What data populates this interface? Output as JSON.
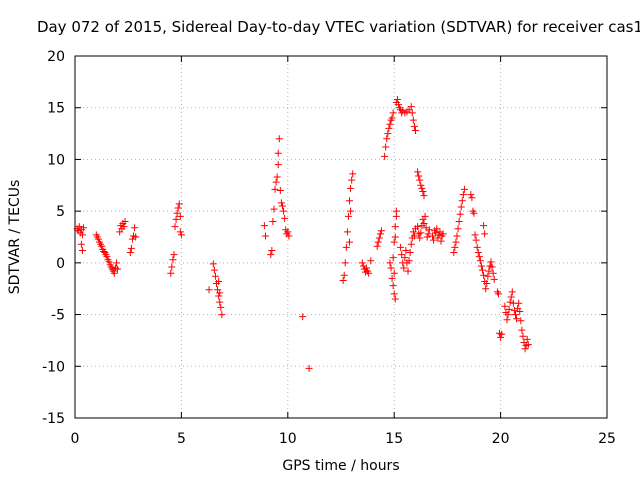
{
  "chart_data": {
    "type": "scatter",
    "title": "Day 072 of 2015, Sidereal Day-to-day VTEC variation (SDTVAR) for receiver cas1",
    "xlabel": "GPS time / hours",
    "ylabel": "SDTVAR / TECUs",
    "xlim": [
      0,
      25
    ],
    "ylim": [
      -15,
      20
    ],
    "xticks": [
      0,
      5,
      10,
      15,
      20,
      25
    ],
    "yticks": [
      -15,
      -10,
      -5,
      0,
      5,
      10,
      15,
      20
    ],
    "x_tick_labels": [
      "0",
      "5",
      "10",
      "15",
      "20",
      "25"
    ],
    "y_tick_labels": [
      "-15",
      "-10",
      "-5",
      "0",
      "5",
      "10",
      "15",
      "20"
    ],
    "grid": true,
    "marker": "+",
    "color": "#ff0000",
    "series": [
      {
        "name": "cas1",
        "points": [
          [
            0.1,
            3.3
          ],
          [
            0.15,
            3.1
          ],
          [
            0.2,
            3.5
          ],
          [
            0.25,
            2.9
          ],
          [
            0.3,
            3.2
          ],
          [
            0.35,
            2.7
          ],
          [
            0.3,
            1.8
          ],
          [
            0.35,
            1.2
          ],
          [
            0.4,
            3.4
          ],
          [
            1.0,
            2.7
          ],
          [
            1.05,
            2.5
          ],
          [
            1.1,
            2.3
          ],
          [
            1.15,
            2.0
          ],
          [
            1.2,
            1.8
          ],
          [
            1.25,
            1.6
          ],
          [
            1.3,
            1.3
          ],
          [
            1.35,
            1.1
          ],
          [
            1.4,
            1.0
          ],
          [
            1.45,
            0.8
          ],
          [
            1.5,
            0.6
          ],
          [
            1.55,
            0.3
          ],
          [
            1.6,
            0.1
          ],
          [
            1.65,
            -0.2
          ],
          [
            1.7,
            -0.4
          ],
          [
            1.75,
            -0.6
          ],
          [
            1.8,
            -0.8
          ],
          [
            1.85,
            -1.0
          ],
          [
            1.9,
            -0.5
          ],
          [
            1.95,
            0.0
          ],
          [
            2.0,
            -0.6
          ],
          [
            2.1,
            3.0
          ],
          [
            2.15,
            3.6
          ],
          [
            2.2,
            3.3
          ],
          [
            2.25,
            3.8
          ],
          [
            2.3,
            3.5
          ],
          [
            2.35,
            4.0
          ],
          [
            2.6,
            1.0
          ],
          [
            2.65,
            1.4
          ],
          [
            2.7,
            2.3
          ],
          [
            2.75,
            2.6
          ],
          [
            2.8,
            3.4
          ],
          [
            2.85,
            2.5
          ],
          [
            4.5,
            -1.0
          ],
          [
            4.55,
            -0.4
          ],
          [
            4.6,
            0.3
          ],
          [
            4.65,
            0.8
          ],
          [
            4.7,
            3.5
          ],
          [
            4.75,
            4.2
          ],
          [
            4.8,
            4.8
          ],
          [
            4.85,
            5.3
          ],
          [
            4.9,
            5.7
          ],
          [
            4.95,
            3.0
          ],
          [
            5.0,
            2.7
          ],
          [
            4.95,
            4.5
          ],
          [
            6.3,
            -2.6
          ],
          [
            6.5,
            -0.1
          ],
          [
            6.55,
            -0.7
          ],
          [
            6.6,
            -1.3
          ],
          [
            6.65,
            -2.0
          ],
          [
            6.7,
            -2.6
          ],
          [
            6.75,
            -3.2
          ],
          [
            6.8,
            -3.8
          ],
          [
            6.85,
            -4.3
          ],
          [
            6.9,
            -5.0
          ],
          [
            6.75,
            -1.8
          ],
          [
            6.8,
            -2.9
          ],
          [
            8.9,
            3.6
          ],
          [
            8.95,
            2.6
          ],
          [
            9.2,
            0.8
          ],
          [
            9.25,
            1.2
          ],
          [
            9.3,
            4.0
          ],
          [
            9.35,
            5.2
          ],
          [
            9.4,
            7.1
          ],
          [
            9.45,
            7.8
          ],
          [
            9.5,
            8.3
          ],
          [
            9.55,
            9.5
          ],
          [
            9.55,
            10.6
          ],
          [
            9.6,
            12.0
          ],
          [
            9.65,
            7.0
          ],
          [
            9.7,
            5.8
          ],
          [
            9.75,
            5.5
          ],
          [
            9.8,
            5.0
          ],
          [
            9.85,
            4.3
          ],
          [
            9.9,
            3.2
          ],
          [
            9.95,
            2.8
          ],
          [
            10.0,
            3.0
          ],
          [
            10.05,
            2.6
          ],
          [
            10.7,
            -5.2
          ],
          [
            11.0,
            -10.2
          ],
          [
            12.6,
            -1.7
          ],
          [
            12.65,
            -1.2
          ],
          [
            12.7,
            0.0
          ],
          [
            12.75,
            1.5
          ],
          [
            12.8,
            3.0
          ],
          [
            12.85,
            4.5
          ],
          [
            12.9,
            6.0
          ],
          [
            12.95,
            7.2
          ],
          [
            13.0,
            8.0
          ],
          [
            13.05,
            8.6
          ],
          [
            12.9,
            2.0
          ],
          [
            12.95,
            5.0
          ],
          [
            13.5,
            0.0
          ],
          [
            13.55,
            -0.3
          ],
          [
            13.6,
            -0.6
          ],
          [
            13.65,
            -0.9
          ],
          [
            13.7,
            -0.5
          ],
          [
            13.75,
            -0.8
          ],
          [
            13.8,
            -1.0
          ],
          [
            13.9,
            0.2
          ],
          [
            14.2,
            1.6
          ],
          [
            14.25,
            2.0
          ],
          [
            14.3,
            2.4
          ],
          [
            14.35,
            2.8
          ],
          [
            14.4,
            3.1
          ],
          [
            14.55,
            10.3
          ],
          [
            14.6,
            11.2
          ],
          [
            14.65,
            12.0
          ],
          [
            14.7,
            12.5
          ],
          [
            14.75,
            13.0
          ],
          [
            14.8,
            13.4
          ],
          [
            14.85,
            13.8
          ],
          [
            14.9,
            14.0
          ],
          [
            14.95,
            14.5
          ],
          [
            14.8,
            0.0
          ],
          [
            14.85,
            -0.5
          ],
          [
            14.9,
            -1.5
          ],
          [
            14.95,
            -2.2
          ],
          [
            15.0,
            -3.0
          ],
          [
            15.05,
            -3.5
          ],
          [
            15.0,
            -1.0
          ],
          [
            14.95,
            0.5
          ],
          [
            15.0,
            2.0
          ],
          [
            15.05,
            3.5
          ],
          [
            15.1,
            5.0
          ],
          [
            15.1,
            4.5
          ],
          [
            15.05,
            2.5
          ],
          [
            15.1,
            15.5
          ],
          [
            15.15,
            15.8
          ],
          [
            15.2,
            15.3
          ],
          [
            15.25,
            15.0
          ],
          [
            15.3,
            14.8
          ],
          [
            15.35,
            14.5
          ],
          [
            15.4,
            14.7
          ],
          [
            15.5,
            14.5
          ],
          [
            15.6,
            14.6
          ],
          [
            15.7,
            14.8
          ],
          [
            15.8,
            15.1
          ],
          [
            15.85,
            14.5
          ],
          [
            15.9,
            13.8
          ],
          [
            15.95,
            13.2
          ],
          [
            16.0,
            12.8
          ],
          [
            15.3,
            1.5
          ],
          [
            15.35,
            0.8
          ],
          [
            15.4,
            0.0
          ],
          [
            15.45,
            -0.5
          ],
          [
            15.5,
            0.5
          ],
          [
            15.55,
            1.2
          ],
          [
            15.6,
            0.0
          ],
          [
            15.65,
            -0.8
          ],
          [
            15.7,
            0.2
          ],
          [
            15.75,
            1.0
          ],
          [
            15.8,
            1.8
          ],
          [
            15.85,
            2.4
          ],
          [
            15.9,
            3.0
          ],
          [
            15.95,
            2.6
          ],
          [
            16.0,
            3.3
          ],
          [
            16.1,
            8.8
          ],
          [
            16.15,
            8.4
          ],
          [
            16.2,
            8.0
          ],
          [
            16.25,
            7.5
          ],
          [
            16.3,
            7.2
          ],
          [
            16.35,
            6.9
          ],
          [
            16.4,
            6.5
          ],
          [
            16.1,
            3.5
          ],
          [
            16.15,
            2.8
          ],
          [
            16.2,
            2.4
          ],
          [
            16.25,
            2.9
          ],
          [
            16.3,
            3.6
          ],
          [
            16.35,
            4.2
          ],
          [
            16.4,
            3.8
          ],
          [
            16.45,
            4.5
          ],
          [
            16.5,
            3.4
          ],
          [
            16.55,
            2.5
          ],
          [
            16.6,
            2.8
          ],
          [
            16.65,
            3.2
          ],
          [
            16.8,
            2.6
          ],
          [
            16.85,
            2.2
          ],
          [
            16.9,
            3.1
          ],
          [
            16.95,
            2.9
          ],
          [
            17.0,
            3.3
          ],
          [
            17.05,
            2.4
          ],
          [
            17.1,
            2.7
          ],
          [
            17.15,
            3.0
          ],
          [
            17.2,
            2.1
          ],
          [
            17.25,
            2.6
          ],
          [
            17.3,
            2.8
          ],
          [
            17.8,
            1.0
          ],
          [
            17.85,
            1.5
          ],
          [
            17.9,
            2.0
          ],
          [
            17.95,
            2.6
          ],
          [
            18.0,
            3.3
          ],
          [
            18.05,
            4.0
          ],
          [
            18.1,
            4.7
          ],
          [
            18.15,
            5.4
          ],
          [
            18.2,
            6.0
          ],
          [
            18.25,
            6.6
          ],
          [
            18.3,
            7.1
          ],
          [
            18.6,
            6.6
          ],
          [
            18.65,
            6.3
          ],
          [
            18.7,
            5.0
          ],
          [
            18.75,
            4.8
          ],
          [
            18.8,
            2.7
          ],
          [
            18.85,
            2.2
          ],
          [
            18.9,
            1.5
          ],
          [
            18.95,
            1.0
          ],
          [
            19.0,
            0.6
          ],
          [
            19.05,
            0.2
          ],
          [
            19.1,
            -0.3
          ],
          [
            19.15,
            -0.7
          ],
          [
            19.2,
            -1.2
          ],
          [
            19.25,
            -1.8
          ],
          [
            19.3,
            -2.5
          ],
          [
            19.35,
            -2.0
          ],
          [
            19.4,
            -1.3
          ],
          [
            19.45,
            -0.8
          ],
          [
            19.5,
            -0.3
          ],
          [
            19.55,
            0.1
          ],
          [
            19.6,
            -0.4
          ],
          [
            19.65,
            -1.0
          ],
          [
            19.7,
            -1.6
          ],
          [
            19.2,
            3.6
          ],
          [
            19.25,
            2.8
          ],
          [
            19.85,
            -2.8
          ],
          [
            19.9,
            -3.0
          ],
          [
            19.95,
            -6.8
          ],
          [
            20.0,
            -7.2
          ],
          [
            20.05,
            -6.9
          ],
          [
            20.2,
            -4.2
          ],
          [
            20.25,
            -4.8
          ],
          [
            20.3,
            -5.5
          ],
          [
            20.35,
            -5.0
          ],
          [
            20.4,
            -4.5
          ],
          [
            20.45,
            -3.8
          ],
          [
            20.5,
            -3.3
          ],
          [
            20.55,
            -2.8
          ],
          [
            20.6,
            -3.9
          ],
          [
            20.65,
            -4.6
          ],
          [
            20.7,
            -5.0
          ],
          [
            20.75,
            -5.4
          ],
          [
            20.8,
            -4.4
          ],
          [
            20.85,
            -3.9
          ],
          [
            20.9,
            -4.7
          ],
          [
            20.95,
            -5.6
          ],
          [
            21.0,
            -6.5
          ],
          [
            21.05,
            -7.1
          ],
          [
            21.1,
            -7.7
          ],
          [
            21.15,
            -8.3
          ],
          [
            21.2,
            -8.0
          ],
          [
            21.25,
            -7.4
          ],
          [
            21.3,
            -7.9
          ]
        ]
      }
    ]
  }
}
